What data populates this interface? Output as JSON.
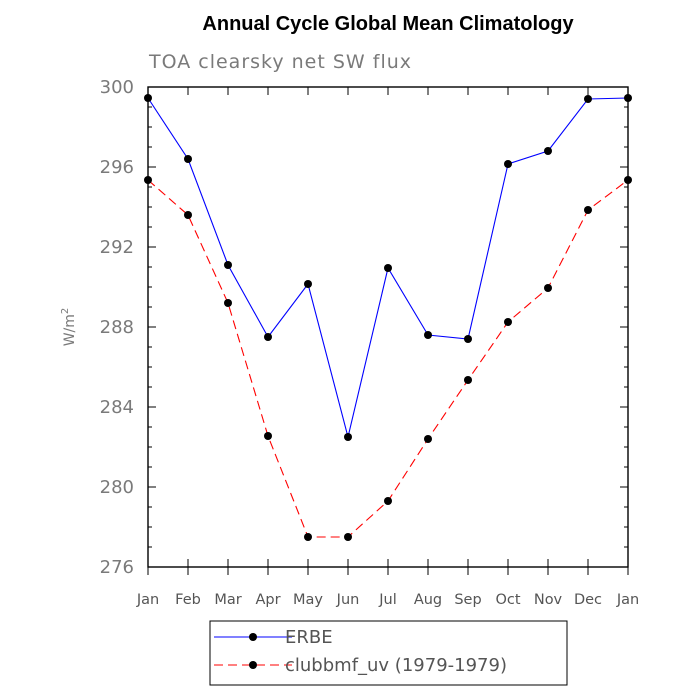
{
  "chart_data": {
    "type": "line",
    "title": "Annual Cycle Global Mean Climatology",
    "subtitle": "TOA clearsky net SW flux",
    "ylabel_base": "W/m",
    "ylabel_sup": "2",
    "xlabel": "",
    "categories": [
      "Jan",
      "Feb",
      "Mar",
      "Apr",
      "May",
      "Jun",
      "Jul",
      "Aug",
      "Sep",
      "Oct",
      "Nov",
      "Dec",
      "Jan"
    ],
    "ylim": [
      276,
      300
    ],
    "yticks": [
      276,
      280,
      284,
      288,
      292,
      296,
      300
    ],
    "grid": false,
    "legend_position": "bottom",
    "series": [
      {
        "name": "ERBE",
        "color": "#0000ff",
        "dash": "solid",
        "values": [
          299.45,
          296.4,
          291.1,
          287.5,
          290.15,
          282.5,
          290.95,
          287.6,
          287.4,
          296.15,
          296.8,
          299.4,
          299.45
        ]
      },
      {
        "name": "clubbmf_uv (1979-1979)",
        "color": "#ff0000",
        "dash": "dashed",
        "values": [
          295.35,
          293.6,
          289.2,
          282.55,
          277.5,
          277.5,
          279.3,
          282.4,
          285.35,
          288.25,
          289.95,
          293.85,
          295.35
        ]
      }
    ]
  }
}
